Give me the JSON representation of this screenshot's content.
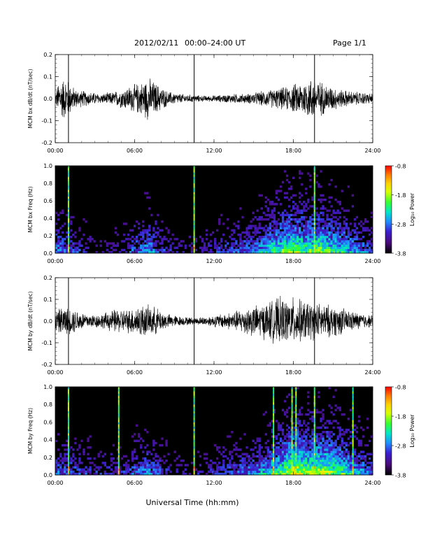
{
  "header": {
    "date": "2012/02/11",
    "time_range": "00:00–24:00 UT",
    "page": "Page 1/1"
  },
  "xaxis_label": "Universal Time (hh:mm)",
  "colors": {
    "trace": "#000000",
    "spectrogram_background": "#000000",
    "colorbar": [
      "#000000",
      "#4b0a7a",
      "#3a1fd0",
      "#1e8cff",
      "#00e6c8",
      "#33ff33",
      "#d8ff00",
      "#ffd000",
      "#ff7a00",
      "#ff0000"
    ]
  },
  "chart_data": [
    {
      "type": "line",
      "panel": "bx-dbdt",
      "ylabel": "MCM bx dB/dt (nT/sec)",
      "xlim": [
        0,
        24
      ],
      "ylim": [
        -0.2,
        0.2
      ],
      "xticks": [
        "00:00",
        "06:00",
        "12:00",
        "18:00",
        "24:00"
      ],
      "yticks": [
        "-0.2",
        "-0.1",
        "0.0",
        "0.1",
        "0.2"
      ],
      "spikes_hours": [
        1.0,
        10.5,
        19.6
      ],
      "envelope": {
        "hours": [
          0,
          0.3,
          0.8,
          1.5,
          2.5,
          3.5,
          4.5,
          5.5,
          6.5,
          7.0,
          7.5,
          8.5,
          9.5,
          10.5,
          11.5,
          12.5,
          13.5,
          14.5,
          15.5,
          16.5,
          17.5,
          18.5,
          19.5,
          20.5,
          21.5,
          22.5,
          23.5,
          24
        ],
        "amplitude": [
          0.02,
          0.08,
          0.09,
          0.04,
          0.03,
          0.02,
          0.03,
          0.05,
          0.07,
          0.09,
          0.07,
          0.03,
          0.02,
          0.015,
          0.012,
          0.015,
          0.02,
          0.02,
          0.03,
          0.04,
          0.05,
          0.07,
          0.09,
          0.06,
          0.04,
          0.03,
          0.025,
          0.02
        ]
      }
    },
    {
      "type": "heatmap",
      "panel": "bx-freq",
      "ylabel": "MCM bx Freq (Hz)",
      "xlim": [
        0,
        24
      ],
      "ylim": [
        0,
        1.0
      ],
      "xticks": [
        "00:00",
        "06:00",
        "12:00",
        "18:00",
        "24:00"
      ],
      "yticks": [
        "0.0",
        "0.2",
        "0.4",
        "0.6",
        "0.8",
        "1.0"
      ],
      "colorbar": {
        "label": "Log₁₀ Power",
        "ticks": [
          "-0.8",
          "-1.8",
          "-2.8",
          "-3.8"
        ],
        "range": [
          -3.8,
          -0.8
        ]
      },
      "vertical_lines_hours": [
        1.0,
        10.5,
        19.6
      ],
      "activity": {
        "hours": [
          0,
          1,
          2,
          3,
          4,
          5,
          6,
          7,
          8,
          9,
          10,
          11,
          12,
          13,
          14,
          15,
          16,
          17,
          18,
          19,
          20,
          21,
          22,
          23,
          24
        ],
        "level": [
          0.35,
          0.3,
          0.2,
          0.12,
          0.1,
          0.15,
          0.3,
          0.4,
          0.25,
          0.15,
          0.12,
          0.15,
          0.2,
          0.25,
          0.3,
          0.35,
          0.45,
          0.55,
          0.6,
          0.55,
          0.6,
          0.5,
          0.45,
          0.35,
          0.25
        ]
      }
    },
    {
      "type": "line",
      "panel": "by-dbdt",
      "ylabel": "MCM by dB/dt (nT/sec)",
      "xlim": [
        0,
        24
      ],
      "ylim": [
        -0.2,
        0.2
      ],
      "xticks": [
        "00:00",
        "06:00",
        "12:00",
        "18:00",
        "24:00"
      ],
      "yticks": [
        "-0.2",
        "-0.1",
        "0.0",
        "0.1",
        "0.2"
      ],
      "spikes_hours": [
        1.0,
        10.5,
        19.6
      ],
      "envelope": {
        "hours": [
          0,
          0.5,
          1.5,
          2.5,
          3.5,
          4.5,
          5.5,
          6.5,
          7.5,
          8.5,
          9.5,
          10.5,
          11.5,
          12.5,
          13.5,
          14.5,
          15.5,
          16.5,
          17.0,
          17.5,
          18.0,
          18.5,
          19.5,
          20.5,
          21.5,
          22.5,
          23.5,
          24
        ],
        "amplitude": [
          0.04,
          0.06,
          0.05,
          0.03,
          0.03,
          0.05,
          0.05,
          0.07,
          0.06,
          0.03,
          0.02,
          0.015,
          0.02,
          0.03,
          0.04,
          0.06,
          0.07,
          0.09,
          0.1,
          0.09,
          0.1,
          0.09,
          0.08,
          0.07,
          0.06,
          0.04,
          0.03,
          0.025
        ]
      }
    },
    {
      "type": "heatmap",
      "panel": "by-freq",
      "ylabel": "MCM by Freq (Hz)",
      "xlim": [
        0,
        24
      ],
      "ylim": [
        0,
        1.0
      ],
      "xticks": [
        "00:00",
        "06:00",
        "12:00",
        "18:00",
        "24:00"
      ],
      "yticks": [
        "0.0",
        "0.2",
        "0.4",
        "0.6",
        "0.8",
        "1.0"
      ],
      "colorbar": {
        "label": "Log₁₀ Power",
        "ticks": [
          "-0.8",
          "-1.8",
          "-2.8",
          "-3.8"
        ],
        "range": [
          -3.8,
          -0.8
        ]
      },
      "vertical_lines_hours": [
        1.0,
        4.8,
        10.5,
        16.5,
        17.9,
        18.2,
        19.6,
        22.5
      ],
      "activity": {
        "hours": [
          0,
          1,
          2,
          3,
          4,
          5,
          6,
          7,
          8,
          9,
          10,
          11,
          12,
          13,
          14,
          15,
          16,
          17,
          18,
          19,
          20,
          21,
          22,
          23,
          24
        ],
        "level": [
          0.3,
          0.3,
          0.25,
          0.2,
          0.2,
          0.2,
          0.3,
          0.35,
          0.25,
          0.15,
          0.12,
          0.15,
          0.2,
          0.25,
          0.3,
          0.35,
          0.45,
          0.55,
          0.7,
          0.6,
          0.65,
          0.6,
          0.5,
          0.4,
          0.3
        ]
      }
    }
  ]
}
